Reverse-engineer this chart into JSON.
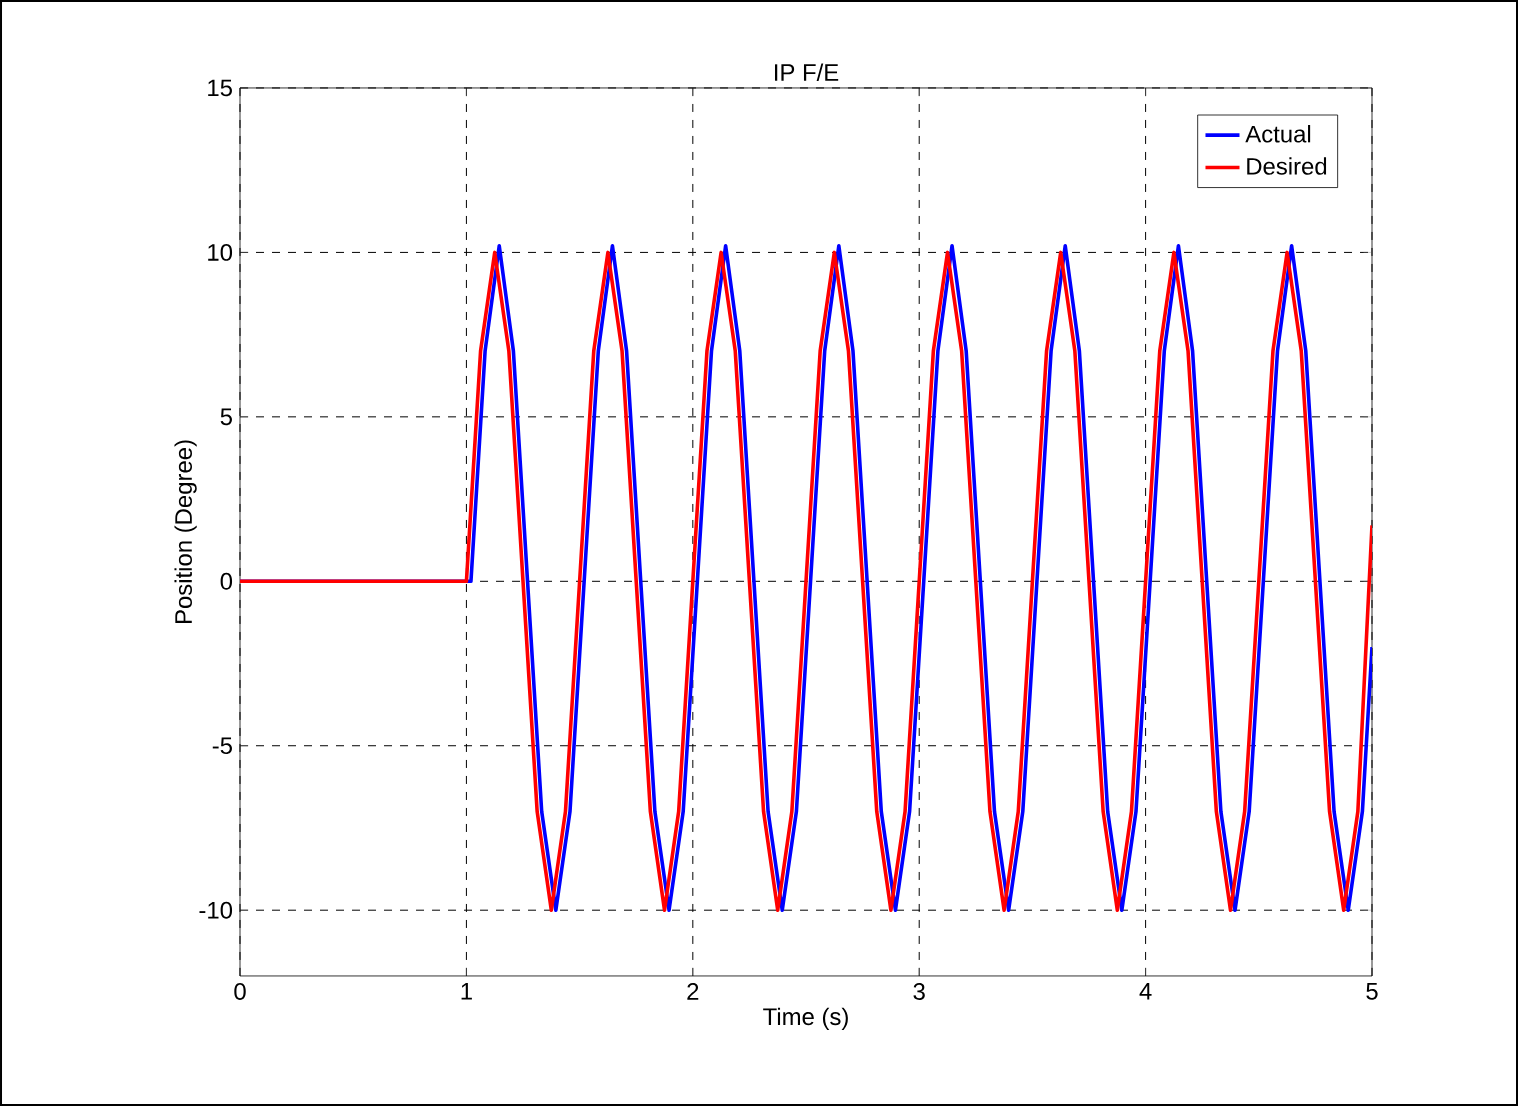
{
  "chart_data": {
    "type": "line",
    "title": "IP F/E",
    "xlabel": "Time (s)",
    "ylabel": "Position (Degree)",
    "xlim": [
      0,
      5
    ],
    "ylim": [
      -12,
      15
    ],
    "xticks": [
      0,
      1,
      2,
      3,
      4,
      5
    ],
    "yticks": [
      -10,
      -5,
      0,
      5,
      10,
      15
    ],
    "grid": true,
    "legend": "top right",
    "line_style": "solid",
    "series": [
      {
        "name": "Actual",
        "color": "#0000ff",
        "x": [
          0,
          1.02,
          1.0825,
          1.145,
          1.2075,
          1.27,
          1.3325,
          1.395,
          1.4575,
          1.52,
          1.5825,
          1.645,
          1.7075,
          1.77,
          1.8325,
          1.895,
          1.9575,
          2.02,
          2.0825,
          2.145,
          2.2075,
          2.27,
          2.3325,
          2.395,
          2.4575,
          2.52,
          2.5825,
          2.645,
          2.7075,
          2.77,
          2.8325,
          2.895,
          2.9575,
          3.02,
          3.0825,
          3.145,
          3.2075,
          3.27,
          3.3325,
          3.395,
          3.4575,
          3.52,
          3.5825,
          3.645,
          3.7075,
          3.77,
          3.8325,
          3.895,
          3.9575,
          4.02,
          4.0825,
          4.145,
          4.2075,
          4.27,
          4.3325,
          4.395,
          4.4575,
          4.52,
          4.5825,
          4.645,
          4.7075,
          4.77,
          4.8325,
          4.895,
          4.9575,
          5
        ],
        "values": [
          0,
          0,
          7,
          10.2,
          7,
          0,
          -7,
          -10,
          -7,
          0,
          7,
          10.2,
          7,
          0,
          -7,
          -10,
          -7,
          0,
          7,
          10.2,
          7,
          0,
          -7,
          -10,
          -7,
          0,
          7,
          10.2,
          7,
          0,
          -7,
          -10,
          -7,
          0,
          7,
          10.2,
          7,
          0,
          -7,
          -10,
          -7,
          0,
          7,
          10.2,
          7,
          0,
          -7,
          -10,
          -7,
          0,
          7,
          10.2,
          7,
          0,
          -7,
          -10,
          -7,
          0,
          7,
          10.2,
          7,
          0,
          -7,
          -10,
          -7,
          -2
        ]
      },
      {
        "name": "Desired",
        "color": "#ff0000",
        "x": [
          0,
          1,
          1.0625,
          1.125,
          1.1875,
          1.25,
          1.3125,
          1.375,
          1.4375,
          1.5,
          1.5625,
          1.625,
          1.6875,
          1.75,
          1.8125,
          1.875,
          1.9375,
          2,
          2.0625,
          2.125,
          2.1875,
          2.25,
          2.3125,
          2.375,
          2.4375,
          2.5,
          2.5625,
          2.625,
          2.6875,
          2.75,
          2.8125,
          2.875,
          2.9375,
          3,
          3.0625,
          3.125,
          3.1875,
          3.25,
          3.3125,
          3.375,
          3.4375,
          3.5,
          3.5625,
          3.625,
          3.6875,
          3.75,
          3.8125,
          3.875,
          3.9375,
          4,
          4.0625,
          4.125,
          4.1875,
          4.25,
          4.3125,
          4.375,
          4.4375,
          4.5,
          4.5625,
          4.625,
          4.6875,
          4.75,
          4.8125,
          4.875,
          4.9375,
          5
        ],
        "values": [
          0,
          0,
          7,
          10,
          7,
          0,
          -7,
          -10,
          -7,
          0,
          7,
          10,
          7,
          0,
          -7,
          -10,
          -7,
          0,
          7,
          10,
          7,
          0,
          -7,
          -10,
          -7,
          0,
          7,
          10,
          7,
          0,
          -7,
          -10,
          -7,
          0,
          7,
          10,
          7,
          0,
          -7,
          -10,
          -7,
          0,
          7,
          10,
          7,
          0,
          -7,
          -10,
          -7,
          0,
          7,
          10,
          7,
          0,
          -7,
          -10,
          -7,
          0,
          7,
          10,
          7,
          0,
          -7,
          -10,
          -7,
          1.7
        ]
      }
    ]
  }
}
